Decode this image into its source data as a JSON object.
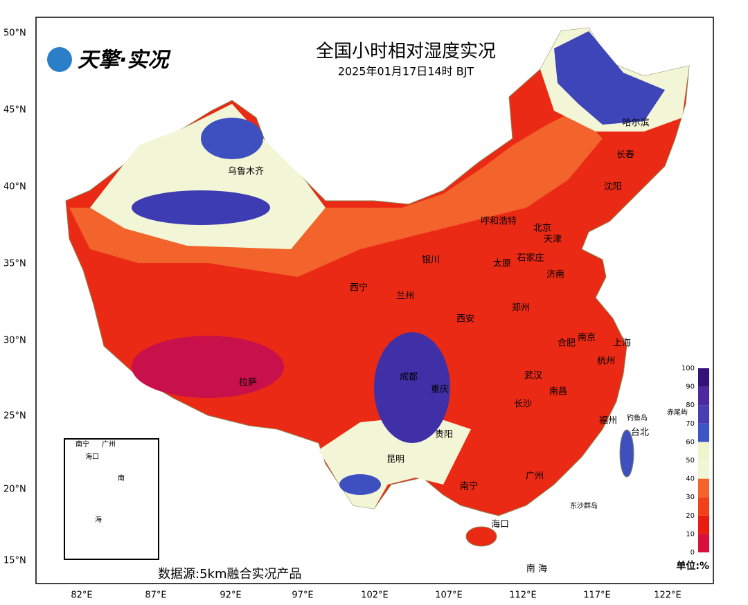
{
  "map": {
    "title": "全国小时相对湿度实况",
    "subtitle": "2025年01月17日14时  BJT",
    "logo": "天擎·实况",
    "lat_labels": [
      "50°N",
      "45°N",
      "40°N",
      "35°N",
      "30°N",
      "25°N",
      "20°N",
      "15°N"
    ],
    "lon_labels": [
      "82°E",
      "87°E",
      "92°E",
      "97°E",
      "102°E",
      "107°E",
      "112°E",
      "117°E",
      "122°E"
    ],
    "cities": [
      "乌鲁木齐",
      "哈尔滨",
      "长春",
      "沈阳",
      "呼和浩特",
      "北京",
      "天津",
      "银川",
      "太原",
      "石家庄",
      "济南",
      "西宁",
      "兰州",
      "西安",
      "郑州",
      "南京",
      "合肥",
      "上海",
      "杭州",
      "拉萨",
      "成都",
      "重庆",
      "武汉",
      "南昌",
      "长沙",
      "福州",
      "台北",
      "贵阳",
      "昆明",
      "南宁",
      "广州",
      "海口",
      "钓鱼岛",
      "赤尾屿",
      "东沙群岛",
      "南 海"
    ],
    "inset_labels": [
      "南宁",
      "广州",
      "海口",
      "南",
      "海"
    ],
    "legend": {
      "ticks": [
        0,
        10,
        20,
        30,
        40,
        50,
        60,
        70,
        80,
        90,
        100
      ],
      "colors": [
        "#d8103e",
        "#ea1c10",
        "#f2401a",
        "#f2642c",
        "#f3f6d6",
        "#eef5cc",
        "#3e55c6",
        "#4a3cb2",
        "#4a2a9e",
        "#35127a"
      ],
      "unit": "单位:%"
    },
    "source": "数据源:5km融合实况产品"
  }
}
